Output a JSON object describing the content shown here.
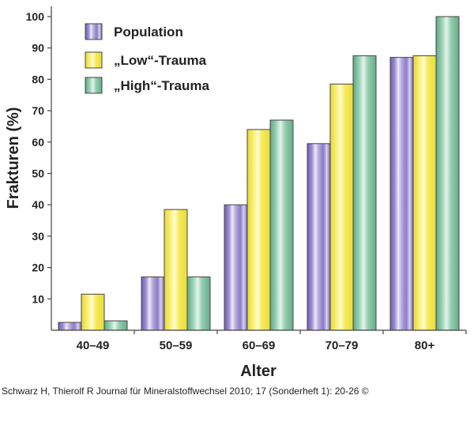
{
  "chart_data": {
    "type": "bar",
    "title": "",
    "xlabel": "Alter",
    "ylabel": "Frakturen (%)",
    "ylim": [
      0,
      100
    ],
    "yticks": [
      10,
      20,
      30,
      40,
      50,
      60,
      70,
      80,
      90,
      100
    ],
    "categories": [
      "40–49",
      "50–59",
      "60–69",
      "70–79",
      "80+"
    ],
    "series": [
      {
        "name": "Population",
        "color": "#8b7bc4",
        "values": [
          2.5,
          17,
          40,
          59.5,
          87
        ]
      },
      {
        "name": "„Low“-Trauma",
        "color": "#f5ea56",
        "values": [
          11.5,
          38.5,
          64,
          78.5,
          87.5
        ]
      },
      {
        "name": "„High“-Trauma",
        "color": "#8cc9a9",
        "values": [
          3,
          17,
          67,
          87.5,
          100
        ]
      }
    ],
    "legend_position": "top-left",
    "grid": false
  },
  "caption": "Schwarz H, Thierolf R Journal für Mineralstoffwechsel 2010; 17 (Sonderheft 1): 20-26 ©"
}
